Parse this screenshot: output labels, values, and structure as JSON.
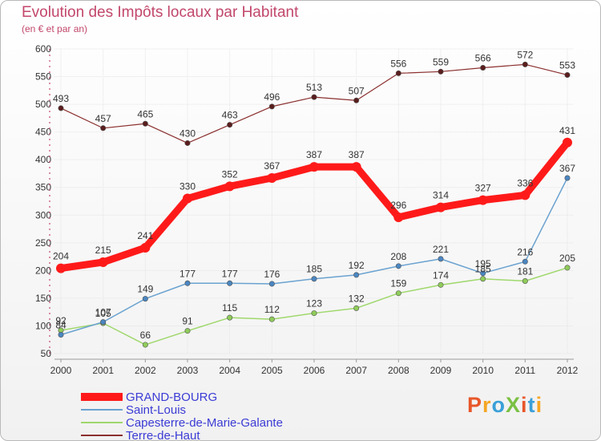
{
  "title": "Evolution des Impôts locaux par Habitant",
  "subtitle": "(en € et par an)",
  "logo": {
    "text": "ProXiti",
    "colors": [
      "#e8572a",
      "#f5a623",
      "#3aa0d8",
      "#7bc043",
      "#e8572a",
      "#3aa0d8",
      "#f5a623"
    ]
  },
  "chart_data": {
    "type": "line",
    "categories": [
      "2000",
      "2001",
      "2002",
      "2003",
      "2004",
      "2005",
      "2006",
      "2007",
      "2008",
      "2009",
      "2010",
      "2011",
      "2012"
    ],
    "ylim": [
      50,
      600
    ],
    "yticks": [
      50,
      100,
      150,
      200,
      250,
      300,
      350,
      400,
      450,
      500,
      550,
      600
    ],
    "grid": true,
    "legend_position": "bottom-left",
    "series": [
      {
        "name": "Terre-de-Haut",
        "color": "#8b2f2f",
        "width": 1.2,
        "values": [
          493,
          457,
          465,
          430,
          463,
          496,
          513,
          507,
          556,
          559,
          566,
          572,
          553
        ]
      },
      {
        "name": "Capesterre-de-Marie-Galante",
        "color": "#9fd86c",
        "width": 1.5,
        "values": [
          92,
          105,
          66,
          91,
          115,
          112,
          123,
          132,
          159,
          174,
          185,
          181,
          205
        ]
      },
      {
        "name": "Saint-Louis",
        "color": "#6aa2d0",
        "width": 1.5,
        "values": [
          84,
          107,
          149,
          177,
          177,
          176,
          185,
          192,
          208,
          221,
          195,
          216,
          367
        ]
      },
      {
        "name": "GRAND-BOURG",
        "color": "#ff1a1a",
        "width": 9,
        "values": [
          204,
          215,
          241,
          330,
          352,
          367,
          387,
          387,
          296,
          314,
          327,
          336,
          431
        ]
      }
    ],
    "legend_order": [
      "GRAND-BOURG",
      "Saint-Louis",
      "Capesterre-de-Marie-Galante",
      "Terre-de-Haut"
    ]
  }
}
